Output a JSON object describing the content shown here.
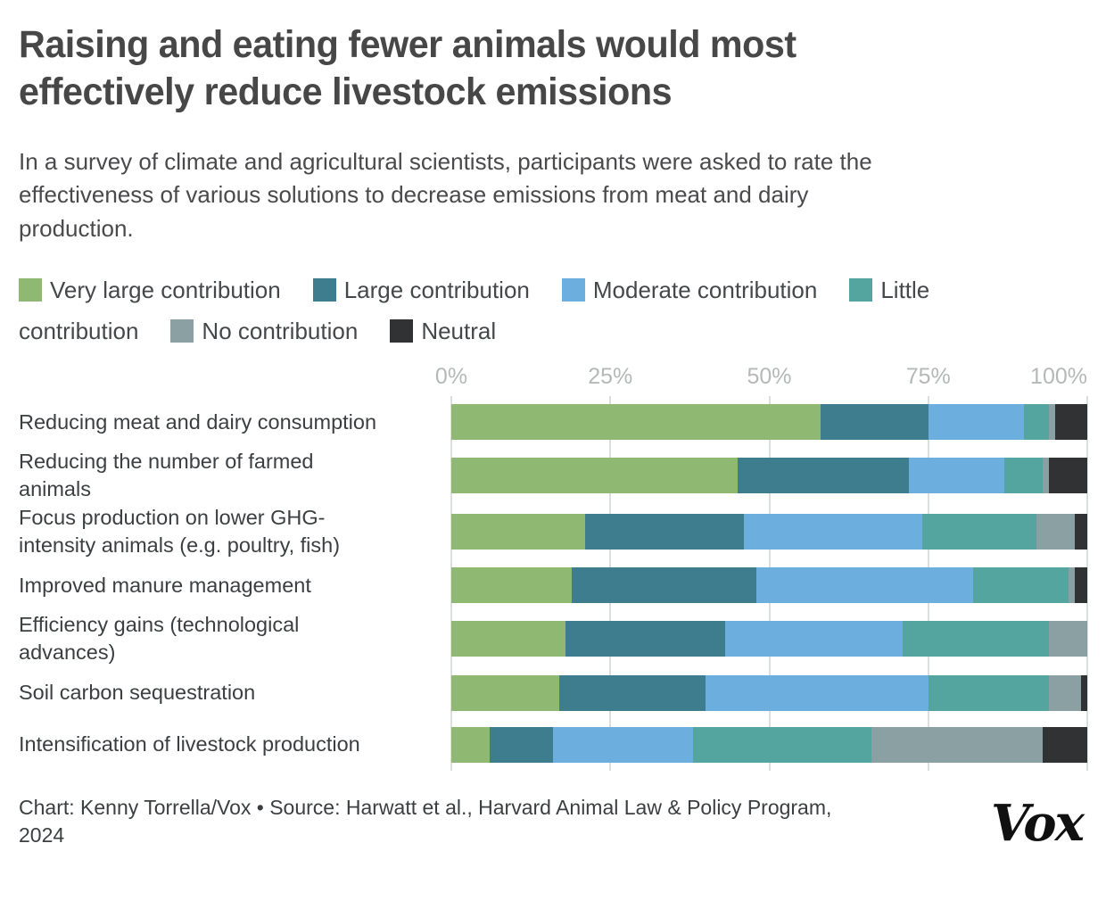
{
  "header": {
    "title": "Raising and eating fewer animals would most\neffectively reduce livestock emissions",
    "subtitle": "In a survey of climate and agricultural scientists, participants were asked to rate the\neffectiveness of various solutions to decrease emissions from meat and dairy\nproduction."
  },
  "legend": {
    "items": [
      {
        "label": "Very large contribution",
        "color": "#8fb973"
      },
      {
        "label": "Large contribution",
        "color": "#3e7d8d"
      },
      {
        "label": "Moderate contribution",
        "color": "#6caedd"
      },
      {
        "label": "Little contribution",
        "color": "#54a4a0"
      },
      {
        "label": "No contribution",
        "color": "#8aa0a2"
      },
      {
        "label": "Neutral",
        "color": "#303234"
      }
    ]
  },
  "chart_data": {
    "type": "bar",
    "stacked": true,
    "orientation": "horizontal",
    "unit": "percent",
    "xlim": [
      0,
      100
    ],
    "grid": true,
    "legend_position": "top",
    "x_ticks": [
      {
        "label": "0%",
        "value": 0
      },
      {
        "label": "25%",
        "value": 25
      },
      {
        "label": "50%",
        "value": 50
      },
      {
        "label": "75%",
        "value": 75
      },
      {
        "label": "100%",
        "value": 100
      }
    ],
    "categories": [
      "Reducing meat and dairy consumption",
      "Reducing the number of farmed\nanimals",
      "Focus production on lower GHG-\nintensity animals (e.g. poultry, fish)",
      "Improved manure management",
      "Efficiency gains (technological\nadvances)",
      "Soil carbon sequestration",
      "Intensification of livestock production"
    ],
    "series": [
      {
        "name": "Very large contribution",
        "color": "#8fb973",
        "values": [
          58,
          45,
          21,
          19,
          18,
          17,
          6
        ]
      },
      {
        "name": "Large contribution",
        "color": "#3e7d8d",
        "values": [
          17,
          27,
          25,
          29,
          25,
          23,
          10
        ]
      },
      {
        "name": "Moderate contribution",
        "color": "#6caedd",
        "values": [
          15,
          15,
          28,
          34,
          28,
          35,
          22
        ]
      },
      {
        "name": "Little contribution",
        "color": "#54a4a0",
        "values": [
          4,
          6,
          18,
          15,
          23,
          19,
          28
        ]
      },
      {
        "name": "No contribution",
        "color": "#8aa0a2",
        "values": [
          1,
          1,
          6,
          1,
          6,
          5,
          27
        ]
      },
      {
        "name": "Neutral",
        "color": "#303234",
        "values": [
          5,
          6,
          2,
          2,
          0,
          1,
          7
        ]
      }
    ]
  },
  "footer": {
    "credit": "Chart: Kenny Torrella/Vox • Source: Harwatt et al., Harvard Animal Law & Policy Program,\n2024",
    "logo_text": "Vox"
  },
  "colors": {
    "title_text": "#474747",
    "body_text": "#3c3f41",
    "axis_text": "#b4b8b8",
    "gridline": "#dcdfdf",
    "background": "#ffffff",
    "logo": "#101010"
  }
}
